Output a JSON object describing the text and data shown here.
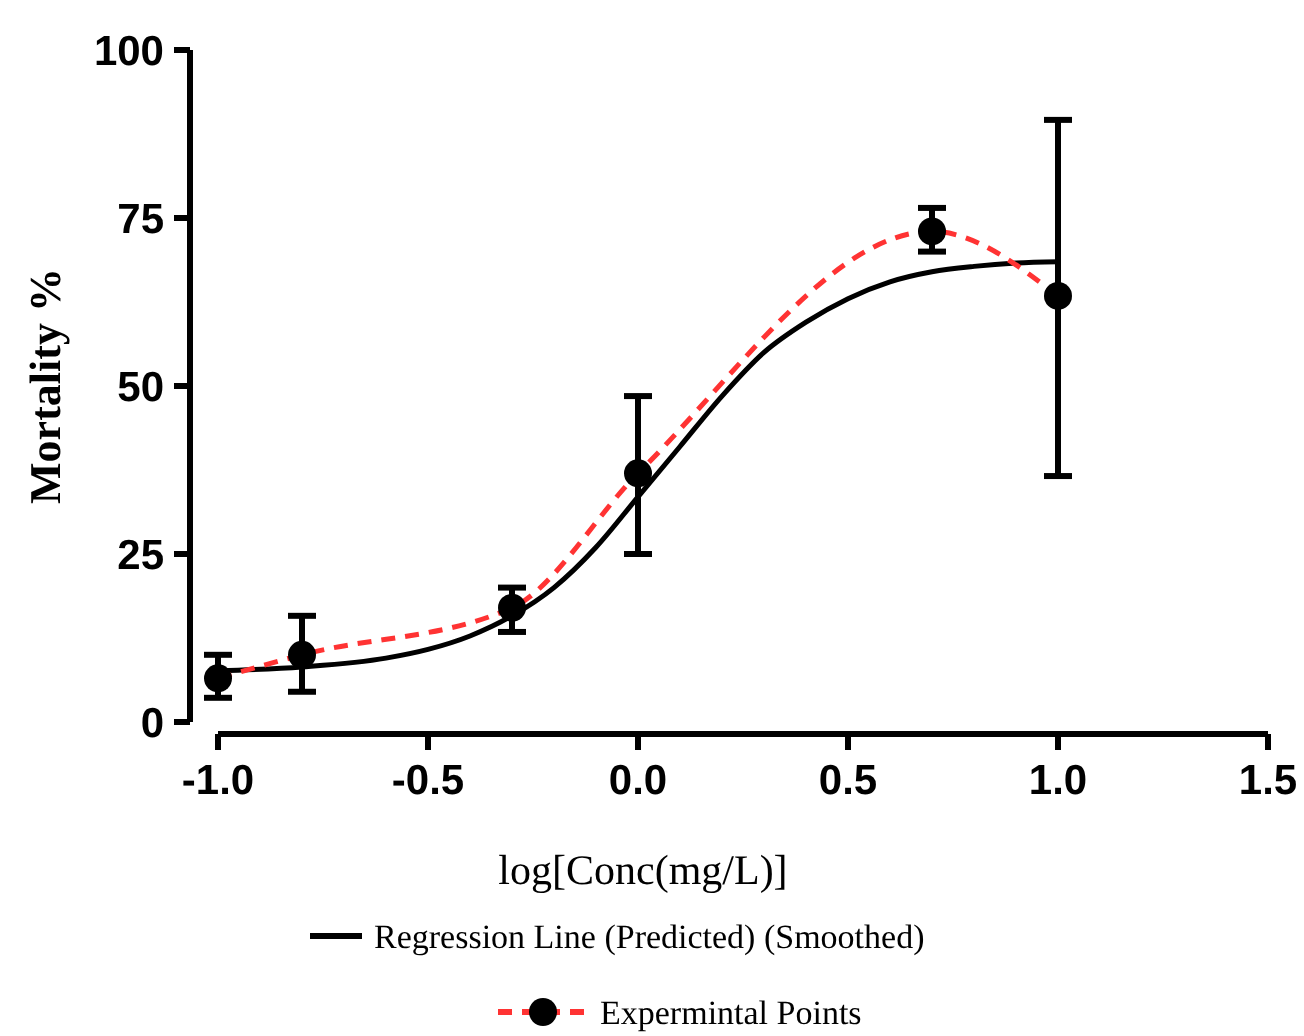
{
  "chart_data": {
    "type": "line",
    "xlabel": "log[Conc(mg/L)]",
    "ylabel": "Mortality %",
    "xlim": [
      -1,
      1.5
    ],
    "xticks": [
      {
        "value": -1,
        "label": "-1.0"
      },
      -0.5,
      {
        "value": 0,
        "label": "0.0"
      },
      0.5,
      {
        "value": 1,
        "label": "1.0"
      },
      1.5
    ],
    "ylim": [
      0,
      100
    ],
    "yticks": [
      0,
      25,
      50,
      75,
      100
    ],
    "grid": false,
    "legend": "bottom",
    "series": [
      {
        "name": "Regression Line (Predicted) (Smoothed)",
        "color": "#000000",
        "marker": "none",
        "line_style": "solid",
        "x": [
          -1,
          -0.8,
          -0.6,
          -0.5,
          -0.4,
          -0.3,
          -0.2,
          -0.1,
          0,
          0.1,
          0.2,
          0.3,
          0.4,
          0.5,
          0.6,
          0.7,
          0.8,
          0.9,
          1.0
        ],
        "values": [
          7.6,
          8.2,
          9.5,
          10.8,
          12.8,
          15.8,
          20,
          26,
          33.5,
          41,
          48.5,
          55,
          59.5,
          63,
          65.5,
          67,
          67.8,
          68.3,
          68.5
        ]
      },
      {
        "name": "Expermintal Points",
        "color": "#ff3333",
        "marker": "circle",
        "line_style": "dashed",
        "x": [
          -1,
          -0.8,
          -0.3,
          0,
          0.7,
          1.0
        ],
        "values": [
          6.5,
          10,
          17,
          37,
          73,
          63.4
        ],
        "errors": [
          [
            3.6,
            10
          ],
          [
            4.5,
            15.8
          ],
          [
            13.4,
            20
          ],
          [
            25,
            48.5
          ],
          [
            70,
            76.5
          ],
          [
            36.6,
            89.6
          ]
        ]
      }
    ]
  }
}
